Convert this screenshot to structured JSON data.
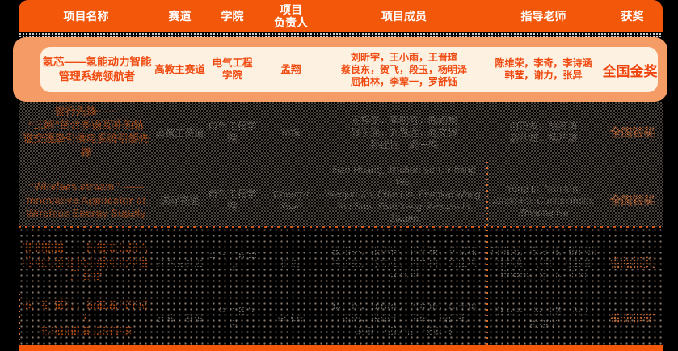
{
  "header": {
    "columns": [
      "项目名称",
      "赛道",
      "学院",
      "项目\n负责人",
      "项目成员",
      "指导老师",
      "获奖"
    ]
  },
  "rows": [
    {
      "name": "氢芯——氢能动力智能\n管理系统领航者",
      "track": "高教主赛道",
      "college": "电气工程\n学院",
      "leader": "孟翔",
      "members": "刘昕宇，王小雨，王晋瑄\n蔡良东，贺飞，段玉，杨明泽\n屈柏林，李荤一，罗舒钰",
      "advisors": "陈维荣，李奇，李诗涵\n韩莹，谢力，张异",
      "award": "全国金奖",
      "highlighted": true
    },
    {
      "name": "智行先锋——\n“三网”结合多源互补的轨\n道交通牵引供电系统引领先\n锋",
      "track": "高教主赛道",
      "college": "电气工程学院",
      "leader": "林峰",
      "members": "王梓豪，李明哲，陈雨桐\n张子涵，刘思远，赵文博\n孙佳怡，周一鸣",
      "advisors": "何正友，胡海涛\n高仕斌，杨乃琪",
      "award": "全国银奖",
      "highlighted": false
    },
    {
      "name": "“Wireless stream” ——\nInnovative Applicator of\nWireless Energy Supply",
      "track": "国际赛道",
      "college": "电气工程学院",
      "leader": "Chengzi\nYuan",
      "members": "Hao Huang, Jinchen Sun, Yihang Wu,\nWenjun Xu, Qike Lin, Fengkai Wang,\nJun Sun, Yixin Yang, Zeyuan Li, Zixuan\nWu, Peng Sun, Junjie Li",
      "advisors": "Yong Li, Nan Ma,\nXiang Fu, Cunningham,\nZhihong He",
      "award": "全国银奖",
      "highlighted": false
    },
    {
      "name": "慧眼智瞳——数智实体融合\n的电力设备状态感知云平台\n开发者",
      "track": "高教主赛道",
      "college": "电气工程学院",
      "leader": "陈蔚",
      "members": "王浩宇，张子轩，林雨辰，李欣然\n周子墨，陈思远，黄雨桐，吴佳琪\n盛亿宏",
      "advisors": "刘晓光，陈月明，杨林豪\n林荣威，李钢，马金鑫\n杨桂英，徐力，王珂",
      "award": "省级银奖",
      "highlighted": false
    },
    {
      "name": "驭“电”前行，新能源汽车动力\n电池组健康监测专家",
      "track": "高教主赛道",
      "college": "电气工程学院",
      "leader": "李沐宸",
      "members": "赵一帆，郭梓睿，周家乐，马千里\n王浩，朱泽宇，冯琳，陆远航\n谢楠，杨欣怡，任云飞",
      "advisors": "魏文宁，陈维荣，张力\n戴朝华",
      "award": "省级铜奖",
      "highlighted": false
    }
  ],
  "colors": {
    "header_bg": "#F2570A",
    "card_outer": "#F59C66",
    "card_inner": "#FDF1E2",
    "highlight_text": "#F04A10",
    "award_text": "#F0430C",
    "faint_gray": "#B0ACA5",
    "faint_orange": "#EE6212",
    "page_bg": "#000000"
  }
}
